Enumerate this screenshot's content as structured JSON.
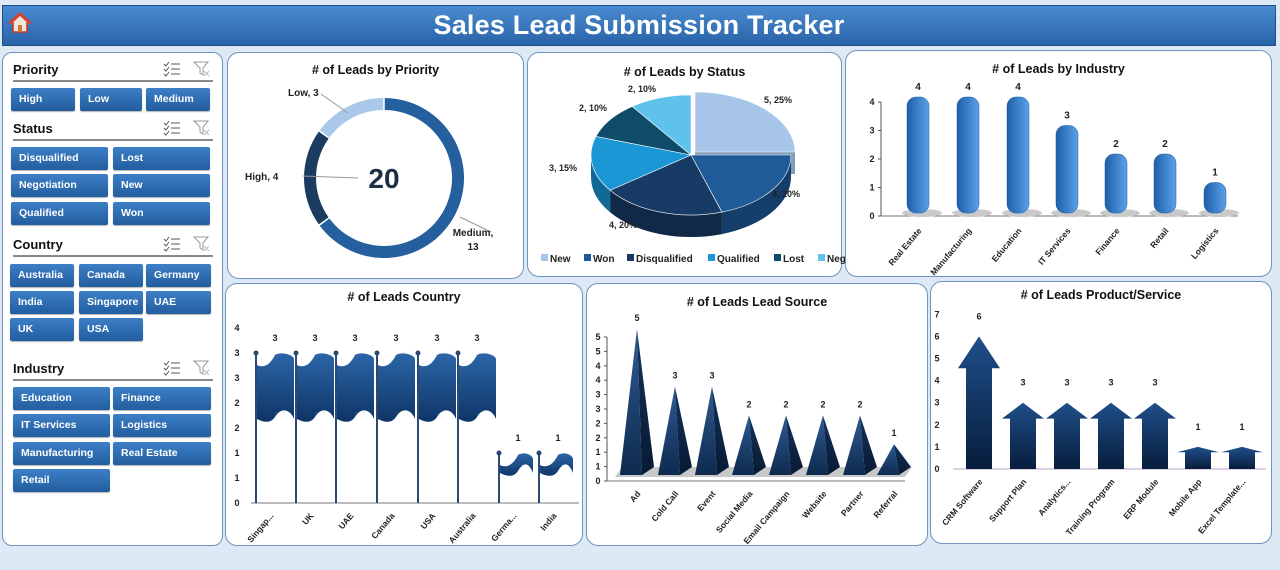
{
  "header": {
    "title": "Sales Lead Submission Tracker",
    "home_icon": "home-icon"
  },
  "slicers": {
    "priority": {
      "label": "Priority",
      "items": [
        "High",
        "Low",
        "Medium"
      ]
    },
    "status": {
      "label": "Status",
      "items": [
        "Disqualified",
        "Lost",
        "Negotiation",
        "New",
        "Qualified",
        "Won"
      ]
    },
    "country": {
      "label": "Country",
      "items": [
        "Australia",
        "Canada",
        "Germany",
        "India",
        "Singapore",
        "UAE",
        "UK",
        "USA"
      ]
    },
    "industry": {
      "label": "Industry",
      "items": [
        "Education",
        "Finance",
        "IT Services",
        "Logistics",
        "Manufacturing",
        "Real Estate",
        "Retail"
      ]
    },
    "icons": [
      "multi-select-icon",
      "clear-filter-icon"
    ]
  },
  "chart_data": [
    {
      "id": "priority",
      "type": "pie",
      "subtype": "doughnut",
      "title": "# of Leads by Priority",
      "center_label": "20",
      "categories": [
        "Medium",
        "High",
        "Low"
      ],
      "values": [
        13,
        4,
        3
      ],
      "data_labels": [
        "Medium, 13",
        "High, 4",
        "Low, 3"
      ],
      "colors": [
        "#255f9e",
        "#1b3b60",
        "#a9c8ea"
      ]
    },
    {
      "id": "status",
      "type": "pie",
      "subtype": "3d-pie",
      "title": "# of Leads by Status",
      "categories": [
        "New",
        "Won",
        "Disqualified",
        "Qualified",
        "Lost",
        "Negotiation"
      ],
      "values": [
        5,
        4,
        4,
        3,
        2,
        2
      ],
      "data_labels": [
        "5, 25%",
        "4, 20%",
        "4, 20%",
        "3, 15%",
        "2, 10%",
        "2, 10%"
      ],
      "colors": [
        "#a6c5e8",
        "#1f5b98",
        "#173b64",
        "#1b97d5",
        "#0e4c6a",
        "#5ec2ec"
      ],
      "legend": "bottom"
    },
    {
      "id": "industry",
      "type": "bar",
      "subtype": "cylinder",
      "title": "# of Leads by Industry",
      "categories": [
        "Real Estate",
        "Manufacturing",
        "Education",
        "IT Services",
        "Finance",
        "Retail",
        "Logistics"
      ],
      "values": [
        4,
        4,
        4,
        3,
        2,
        2,
        1
      ],
      "ylim": [
        0,
        4
      ],
      "yticks": [
        "0",
        "1",
        "2",
        "3",
        "4"
      ],
      "color": "#2f78c8"
    },
    {
      "id": "country",
      "type": "bar",
      "subtype": "flag",
      "title": "# of Leads Country",
      "categories": [
        "Singap...",
        "UK",
        "UAE",
        "Canada",
        "USA",
        "Australia",
        "Germa...",
        "India"
      ],
      "values": [
        3,
        3,
        3,
        3,
        3,
        3,
        1,
        1
      ],
      "ylim": [
        0,
        3.5
      ],
      "yticks": [
        "0",
        "1",
        "1",
        "2",
        "2",
        "3",
        "3",
        "4"
      ],
      "color": "#1d4f86"
    },
    {
      "id": "source",
      "type": "bar",
      "subtype": "pyramid",
      "title": "# of Leads  Lead Source",
      "categories": [
        "Ad",
        "Cold Call",
        "Event",
        "Social Media",
        "Email Campaign",
        "Website",
        "Partner",
        "Referral"
      ],
      "values": [
        5,
        3,
        3,
        2,
        2,
        2,
        2,
        1
      ],
      "ylim": [
        0,
        5
      ],
      "yticks": [
        "0",
        "1",
        "1",
        "2",
        "2",
        "3",
        "3",
        "4",
        "4",
        "5",
        "5"
      ],
      "color": "#1d4373"
    },
    {
      "id": "product",
      "type": "bar",
      "subtype": "arrow",
      "title": "# of Leads  Product/Service",
      "categories": [
        "CRM Software",
        "Support Plan",
        "Analytics...",
        "Training Program",
        "ERP Module",
        "Mobile App",
        "Excel Template..."
      ],
      "values": [
        6,
        3,
        3,
        3,
        3,
        1,
        1
      ],
      "ylim": [
        0,
        7
      ],
      "yticks": [
        "0",
        "1",
        "2",
        "3",
        "4",
        "5",
        "6",
        "7"
      ],
      "color": "#163e6e"
    }
  ]
}
